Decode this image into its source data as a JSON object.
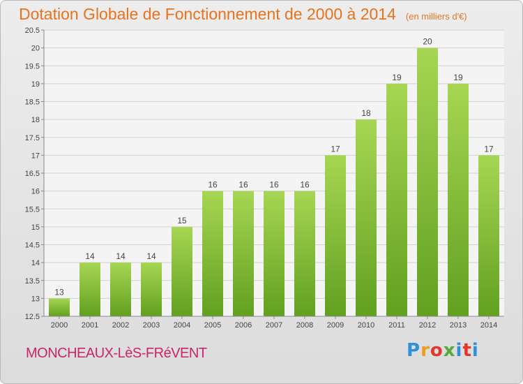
{
  "title": "Dotation Globale de Fonctionnement de 2000 à 2014",
  "subtitle": "(en milliers d'€)",
  "commune": "MONCHEAUX-LèS-FRéVENT",
  "logo": {
    "p": "P",
    "r": "r",
    "o": "o",
    "x": "x",
    "i": "i",
    "t": "t",
    "i2": "i"
  },
  "colors": {
    "title": "#e8731f",
    "commune": "#c8256a",
    "bar_top": "#a6d653",
    "bar_bottom": "#62a020"
  },
  "chart_data": {
    "type": "bar",
    "categories": [
      "2000",
      "2001",
      "2002",
      "2003",
      "2004",
      "2005",
      "2006",
      "2007",
      "2008",
      "2009",
      "2010",
      "2011",
      "2012",
      "2013",
      "2014"
    ],
    "values": [
      13,
      14,
      14,
      14,
      15,
      16,
      16,
      16,
      16,
      17,
      18,
      19,
      20,
      19,
      17
    ],
    "data_labels": [
      "13",
      "14",
      "14",
      "14",
      "15",
      "16",
      "16",
      "16",
      "16",
      "17",
      "18",
      "19",
      "20",
      "19",
      "17"
    ],
    "ylim": [
      12.5,
      20.5
    ],
    "yticks": [
      "12.5",
      "13",
      "13.5",
      "14",
      "14.5",
      "15",
      "15.5",
      "16",
      "16.5",
      "17",
      "17.5",
      "18",
      "18.5",
      "19",
      "19.5",
      "20",
      "20.5"
    ],
    "grid": true
  }
}
